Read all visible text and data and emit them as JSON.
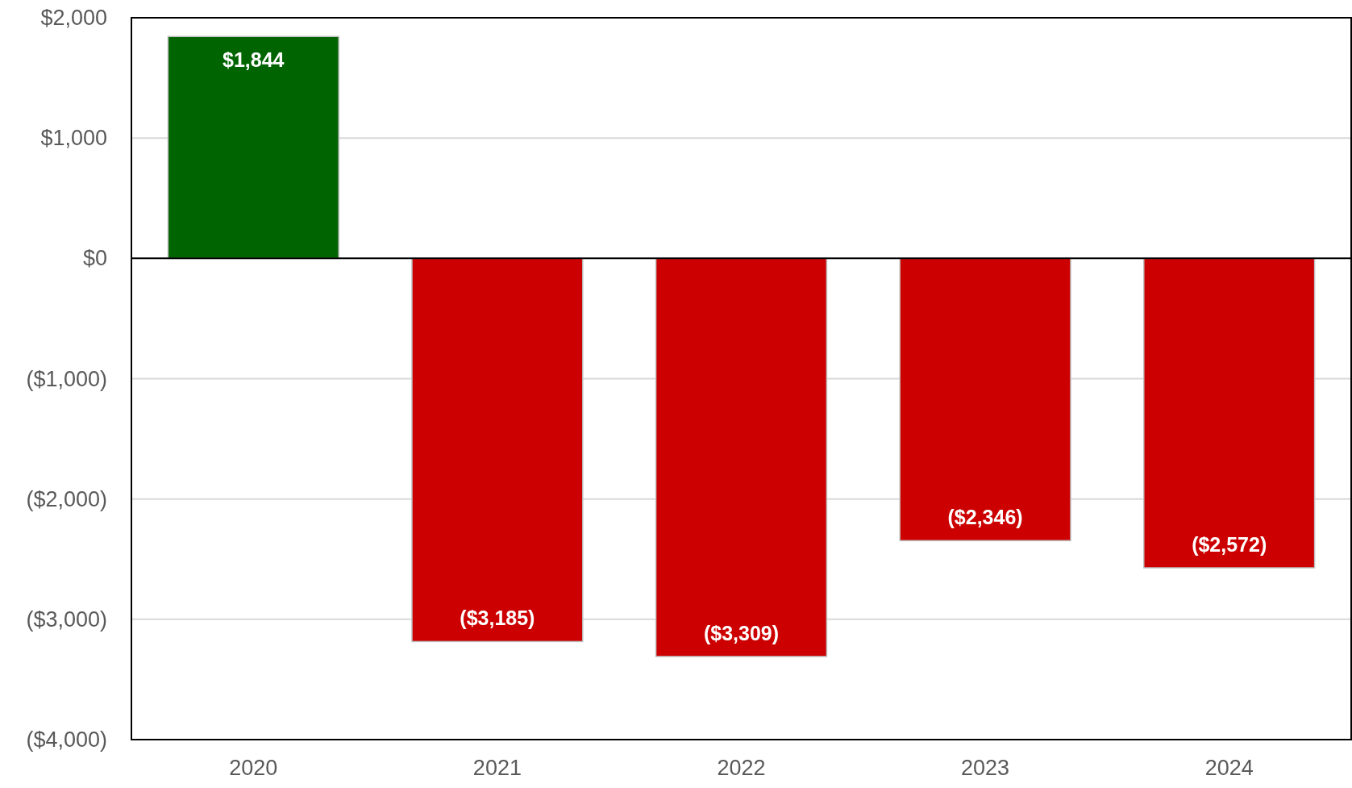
{
  "chart_data": {
    "type": "bar",
    "categories": [
      "2020",
      "2021",
      "2022",
      "2023",
      "2024"
    ],
    "values": [
      1844,
      -3185,
      -3309,
      -2346,
      -2572
    ],
    "colors": [
      "#006400",
      "#cc0000",
      "#cc0000",
      "#cc0000",
      "#cc0000"
    ],
    "value_labels": [
      "$1,844",
      "($3,185)",
      "($3,309)",
      "($2,346)",
      "($2,572)"
    ],
    "ylim": [
      -4000,
      2000
    ],
    "yticks": [
      {
        "value": -4000,
        "label": "($4,000)"
      },
      {
        "value": -3000,
        "label": "($3,000)"
      },
      {
        "value": -2000,
        "label": "($2,000)"
      },
      {
        "value": -1000,
        "label": "($1,000)"
      },
      {
        "value": 0,
        "label": "$0"
      },
      {
        "value": 1000,
        "label": "$1,000"
      },
      {
        "value": 2000,
        "label": "$2,000"
      }
    ],
    "grid": "y"
  }
}
